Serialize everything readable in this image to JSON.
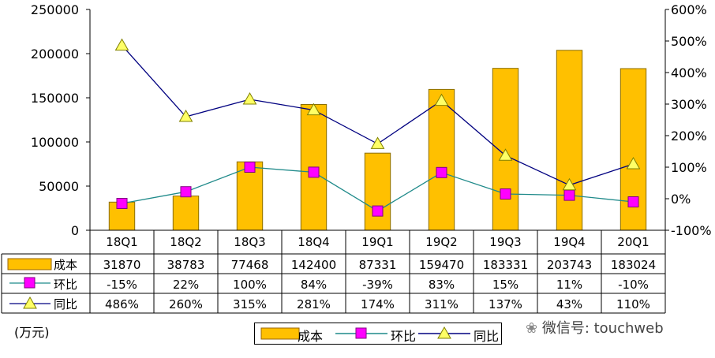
{
  "chart_data": {
    "type": "bar",
    "categories": [
      "18Q1",
      "18Q2",
      "18Q3",
      "18Q4",
      "19Q1",
      "19Q2",
      "19Q3",
      "19Q4",
      "20Q1"
    ],
    "series": [
      {
        "name": "成本",
        "type": "bar",
        "axis": "left",
        "color": "#FFC000",
        "values": [
          31870,
          38783,
          77468,
          142400,
          87331,
          159470,
          183331,
          203743,
          183024
        ],
        "labels": [
          "31870",
          "38783",
          "77468",
          "142400",
          "87331",
          "159470",
          "183331",
          "203743",
          "183024"
        ]
      },
      {
        "name": "环比",
        "type": "line",
        "axis": "right",
        "color": "#1F8A8A",
        "marker": "square",
        "marker_color": "#FF00FF",
        "values": [
          -15,
          22,
          100,
          84,
          -39,
          83,
          15,
          11,
          -10
        ],
        "labels": [
          "-15%",
          "22%",
          "100%",
          "84%",
          "-39%",
          "83%",
          "15%",
          "11%",
          "-10%"
        ]
      },
      {
        "name": "同比",
        "type": "line",
        "axis": "right",
        "color": "#000080",
        "marker": "triangle",
        "marker_color": "#FFFF66",
        "values": [
          486,
          260,
          315,
          281,
          174,
          311,
          137,
          43,
          110
        ],
        "labels": [
          "486%",
          "260%",
          "315%",
          "281%",
          "174%",
          "311%",
          "137%",
          "43%",
          "110%"
        ]
      }
    ],
    "ylim_left": [
      0,
      250000
    ],
    "yticks_left": [
      "0",
      "50000",
      "100000",
      "150000",
      "200000",
      "250000"
    ],
    "ylim_right": [
      -100,
      600
    ],
    "yticks_right": [
      "-100%",
      "0%",
      "100%",
      "200%",
      "300%",
      "400%",
      "500%",
      "600%"
    ],
    "unit_label": "(万元)",
    "grid": false,
    "legend_position": "bottom"
  },
  "watermark": "微信号: touchweb"
}
